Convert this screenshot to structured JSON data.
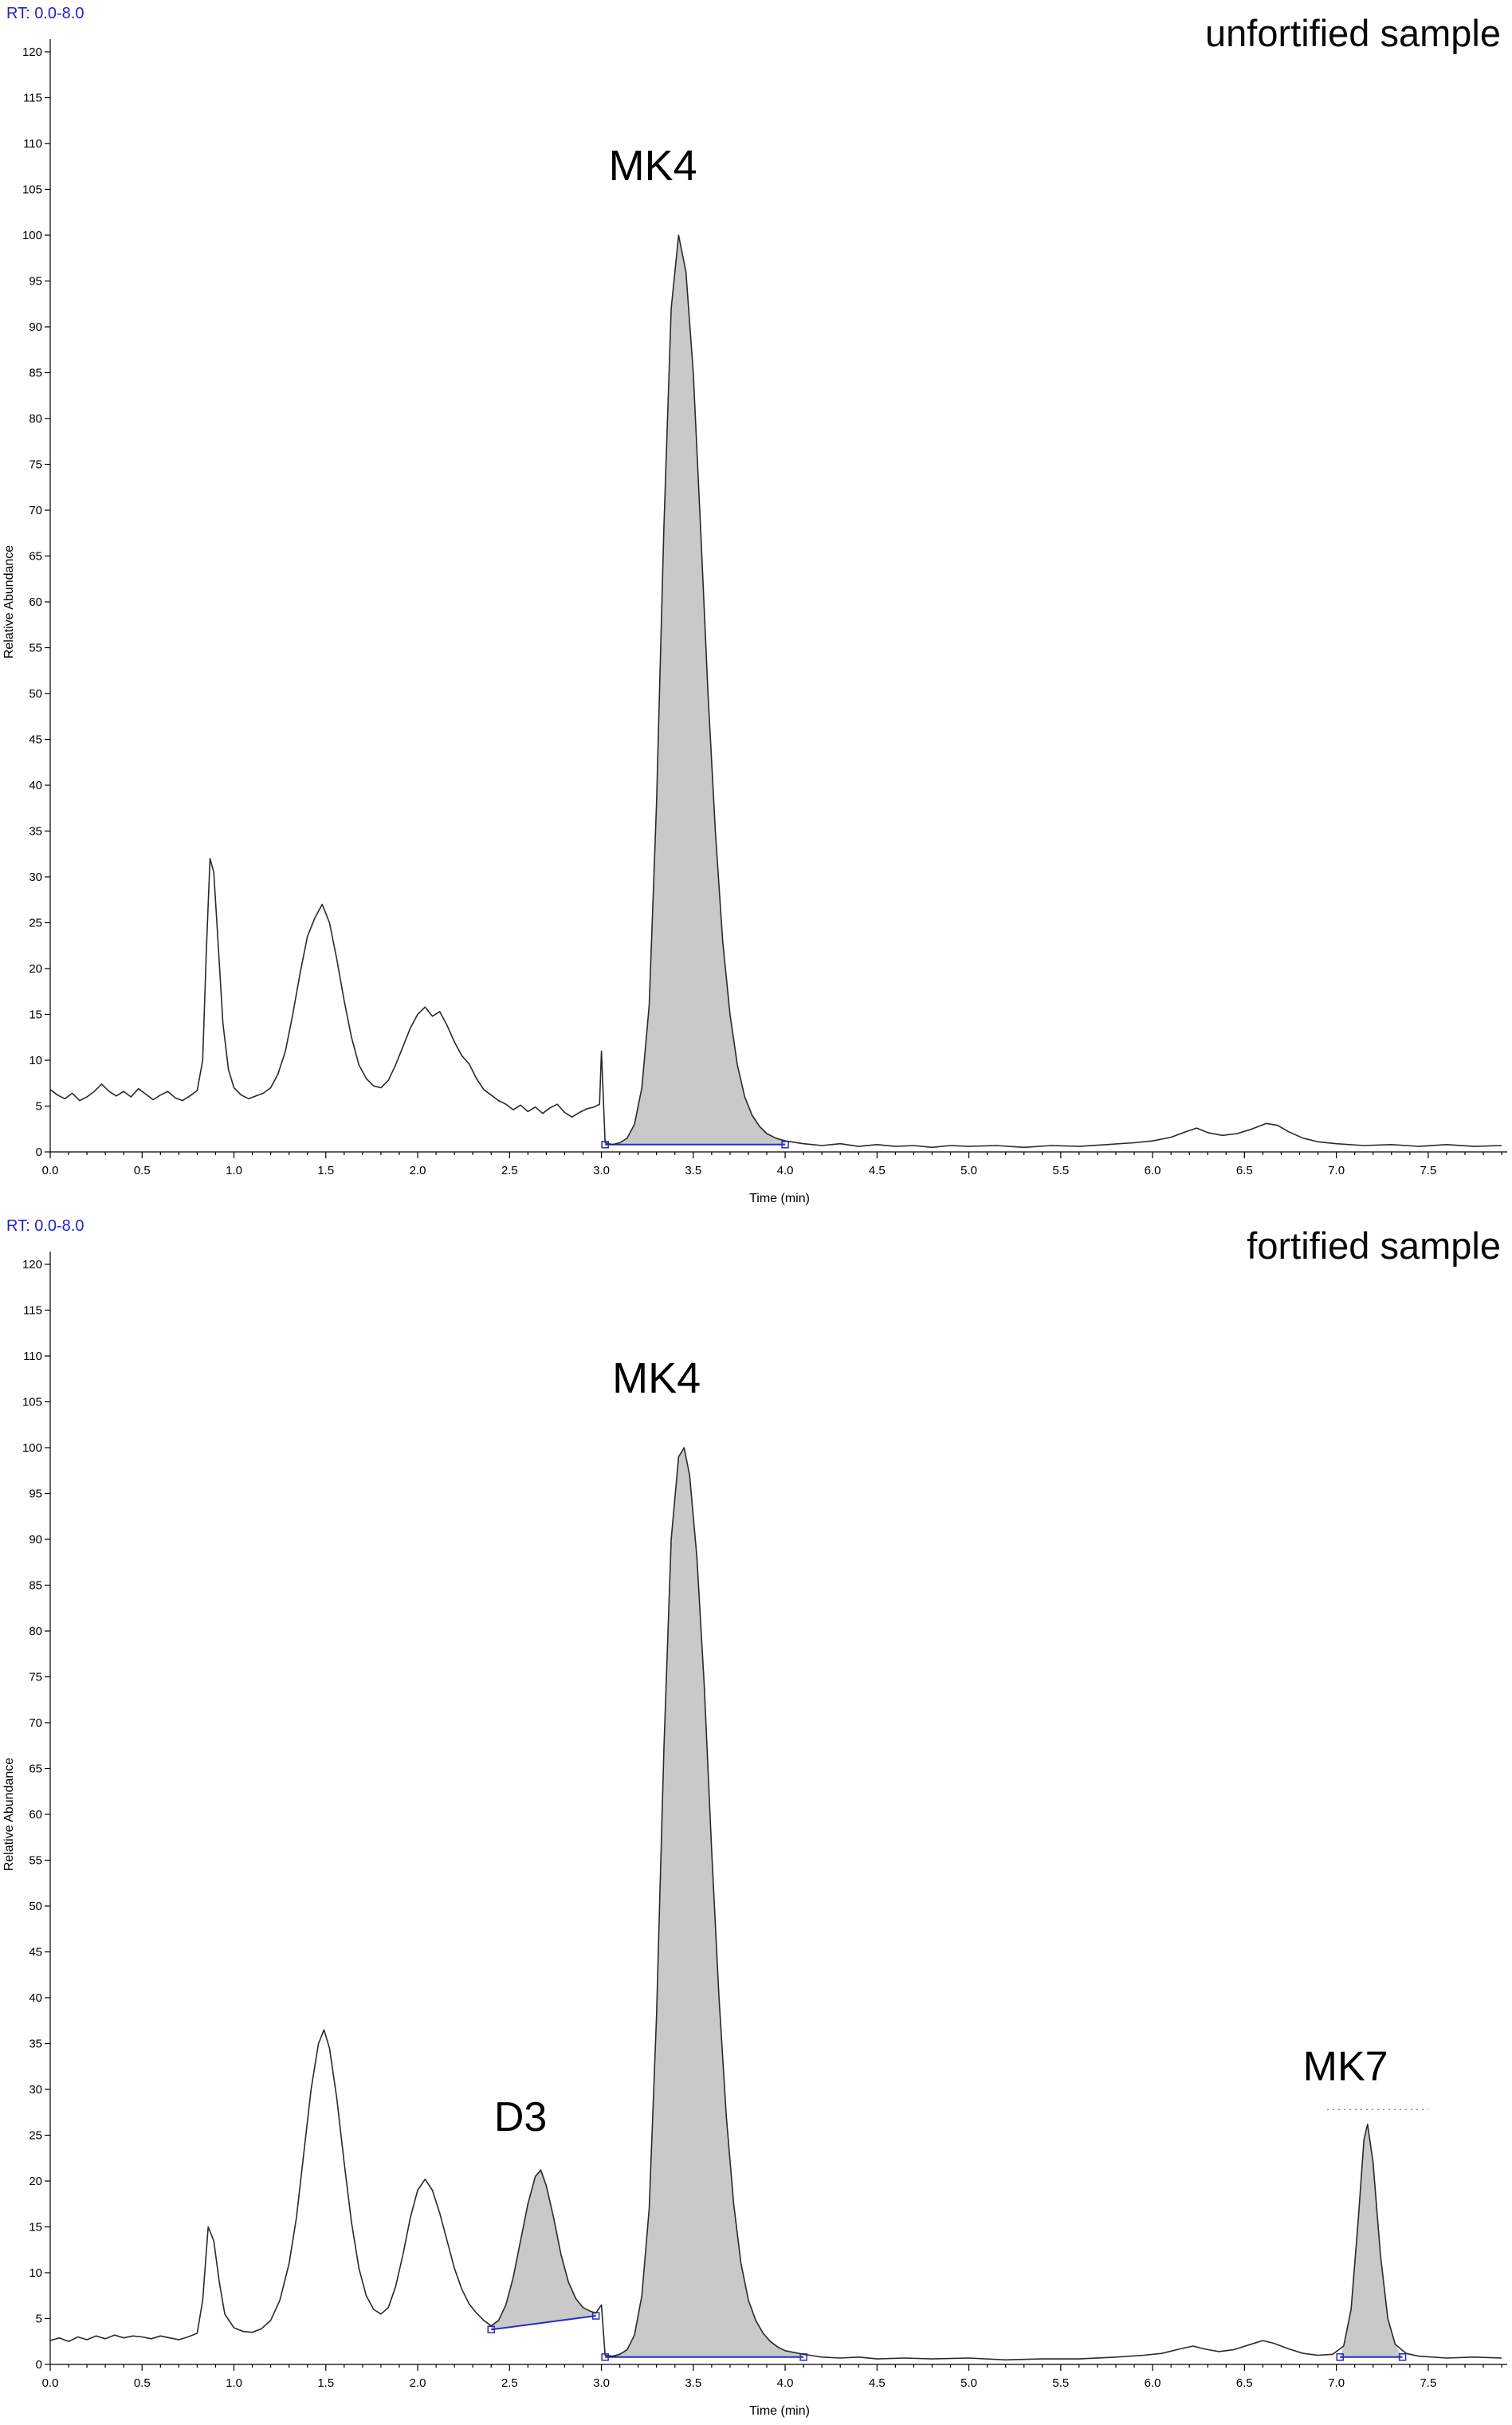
{
  "page": {
    "background": "#ffffff"
  },
  "chart_data": [
    {
      "type": "line",
      "rt_label": "RT: 0.0-8.0",
      "title": "unfortified sample",
      "xlabel": "Time (min)",
      "ylabel": "Relative Abundance",
      "xlim": [
        0,
        7.93
      ],
      "ylim": [
        0,
        120
      ],
      "xtick_step": 0.5,
      "xtick_minor": 0.1,
      "xtick_label_max": 7.5,
      "ytick_step": 5,
      "grid": false,
      "legend": false,
      "line_color": "#2a2a2a",
      "fill_color": "#c9c9c9",
      "integration_color": "#2b2bc4",
      "trace": [
        [
          0,
          6.8
        ],
        [
          0.04,
          6.2
        ],
        [
          0.08,
          5.8
        ],
        [
          0.12,
          6.4
        ],
        [
          0.16,
          5.6
        ],
        [
          0.2,
          6
        ],
        [
          0.24,
          6.6
        ],
        [
          0.28,
          7.4
        ],
        [
          0.32,
          6.6
        ],
        [
          0.36,
          6.1
        ],
        [
          0.4,
          6.6
        ],
        [
          0.44,
          6
        ],
        [
          0.48,
          6.9
        ],
        [
          0.52,
          6.3
        ],
        [
          0.56,
          5.7
        ],
        [
          0.6,
          6.2
        ],
        [
          0.64,
          6.6
        ],
        [
          0.68,
          5.9
        ],
        [
          0.72,
          5.6
        ],
        [
          0.76,
          6.1
        ],
        [
          0.8,
          6.7
        ],
        [
          0.83,
          10
        ],
        [
          0.85,
          22
        ],
        [
          0.87,
          32
        ],
        [
          0.89,
          30.5
        ],
        [
          0.91,
          24
        ],
        [
          0.94,
          14
        ],
        [
          0.97,
          9
        ],
        [
          1,
          7
        ],
        [
          1.04,
          6.2
        ],
        [
          1.08,
          5.8
        ],
        [
          1.12,
          6.1
        ],
        [
          1.16,
          6.4
        ],
        [
          1.2,
          7
        ],
        [
          1.24,
          8.5
        ],
        [
          1.28,
          11
        ],
        [
          1.32,
          15
        ],
        [
          1.36,
          19.5
        ],
        [
          1.4,
          23.5
        ],
        [
          1.44,
          25.5
        ],
        [
          1.48,
          27
        ],
        [
          1.52,
          25
        ],
        [
          1.56,
          21
        ],
        [
          1.6,
          16.5
        ],
        [
          1.64,
          12.5
        ],
        [
          1.68,
          9.5
        ],
        [
          1.72,
          8
        ],
        [
          1.76,
          7.2
        ],
        [
          1.8,
          7
        ],
        [
          1.84,
          7.8
        ],
        [
          1.88,
          9.5
        ],
        [
          1.92,
          11.5
        ],
        [
          1.96,
          13.5
        ],
        [
          2,
          15
        ],
        [
          2.04,
          15.8
        ],
        [
          2.08,
          14.8
        ],
        [
          2.12,
          15.3
        ],
        [
          2.16,
          13.8
        ],
        [
          2.2,
          12
        ],
        [
          2.24,
          10.5
        ],
        [
          2.28,
          9.6
        ],
        [
          2.32,
          8
        ],
        [
          2.36,
          6.8
        ],
        [
          2.4,
          6.2
        ],
        [
          2.44,
          5.6
        ],
        [
          2.48,
          5.2
        ],
        [
          2.52,
          4.6
        ],
        [
          2.56,
          5.1
        ],
        [
          2.6,
          4.4
        ],
        [
          2.64,
          4.9
        ],
        [
          2.68,
          4.2
        ],
        [
          2.72,
          4.8
        ],
        [
          2.76,
          5.2
        ],
        [
          2.8,
          4.3
        ],
        [
          2.84,
          3.8
        ],
        [
          2.88,
          4.3
        ],
        [
          2.92,
          4.7
        ],
        [
          2.96,
          4.9
        ],
        [
          2.99,
          5.2
        ],
        [
          3,
          11
        ],
        [
          3.02,
          1
        ],
        [
          3.06,
          0.8
        ],
        [
          3.1,
          1
        ],
        [
          3.14,
          1.5
        ],
        [
          3.18,
          3
        ],
        [
          3.22,
          7
        ],
        [
          3.26,
          16
        ],
        [
          3.3,
          38
        ],
        [
          3.34,
          68
        ],
        [
          3.38,
          92
        ],
        [
          3.42,
          100
        ],
        [
          3.46,
          96
        ],
        [
          3.5,
          85
        ],
        [
          3.54,
          68
        ],
        [
          3.58,
          50
        ],
        [
          3.62,
          35
        ],
        [
          3.66,
          23
        ],
        [
          3.7,
          15
        ],
        [
          3.74,
          9.5
        ],
        [
          3.78,
          6
        ],
        [
          3.82,
          4
        ],
        [
          3.86,
          2.8
        ],
        [
          3.9,
          2
        ],
        [
          3.95,
          1.5
        ],
        [
          4,
          1.2
        ],
        [
          4.1,
          0.9
        ],
        [
          4.2,
          0.7
        ],
        [
          4.3,
          0.9
        ],
        [
          4.4,
          0.6
        ],
        [
          4.5,
          0.8
        ],
        [
          4.6,
          0.6
        ],
        [
          4.7,
          0.7
        ],
        [
          4.8,
          0.5
        ],
        [
          4.9,
          0.7
        ],
        [
          5,
          0.6
        ],
        [
          5.15,
          0.7
        ],
        [
          5.3,
          0.5
        ],
        [
          5.45,
          0.7
        ],
        [
          5.6,
          0.6
        ],
        [
          5.75,
          0.8
        ],
        [
          5.9,
          1
        ],
        [
          6,
          1.2
        ],
        [
          6.1,
          1.6
        ],
        [
          6.18,
          2.2
        ],
        [
          6.24,
          2.6
        ],
        [
          6.3,
          2.1
        ],
        [
          6.38,
          1.8
        ],
        [
          6.46,
          2
        ],
        [
          6.54,
          2.5
        ],
        [
          6.62,
          3.1
        ],
        [
          6.68,
          2.9
        ],
        [
          6.74,
          2.2
        ],
        [
          6.82,
          1.5
        ],
        [
          6.9,
          1.1
        ],
        [
          7,
          0.9
        ],
        [
          7.15,
          0.7
        ],
        [
          7.3,
          0.8
        ],
        [
          7.45,
          0.6
        ],
        [
          7.6,
          0.8
        ],
        [
          7.75,
          0.6
        ],
        [
          7.9,
          0.7
        ]
      ],
      "shaded_peaks": [
        {
          "name": "MK4",
          "from": 3.02,
          "to": 4.0,
          "base_from": 0.8,
          "base_to": 0.8,
          "rt": 3.42,
          "height": 100
        }
      ],
      "integration_lines": [
        {
          "from": [
            3.02,
            0.8
          ],
          "to": [
            4.0,
            0.8
          ]
        }
      ],
      "dotted_guides": [],
      "annotations": [
        {
          "text": "MK4",
          "t": 3.28,
          "v": 106,
          "size": 54,
          "anchor": "middle"
        }
      ]
    },
    {
      "type": "line",
      "rt_label": "RT: 0.0-8.0",
      "title": "fortified sample",
      "xlabel": "Time (min)",
      "ylabel": "Relative Abundance",
      "xlim": [
        0,
        7.93
      ],
      "ylim": [
        0,
        120
      ],
      "xtick_step": 0.5,
      "xtick_minor": 0.1,
      "xtick_label_max": 7.5,
      "ytick_step": 5,
      "grid": false,
      "legend": false,
      "line_color": "#2a2a2a",
      "fill_color": "#c9c9c9",
      "integration_color": "#2b2bc4",
      "trace": [
        [
          0,
          2.6
        ],
        [
          0.05,
          2.9
        ],
        [
          0.1,
          2.5
        ],
        [
          0.15,
          3
        ],
        [
          0.2,
          2.7
        ],
        [
          0.25,
          3.1
        ],
        [
          0.3,
          2.8
        ],
        [
          0.35,
          3.2
        ],
        [
          0.4,
          2.9
        ],
        [
          0.45,
          3.1
        ],
        [
          0.5,
          3
        ],
        [
          0.55,
          2.8
        ],
        [
          0.6,
          3.1
        ],
        [
          0.65,
          2.9
        ],
        [
          0.7,
          2.7
        ],
        [
          0.75,
          3
        ],
        [
          0.8,
          3.4
        ],
        [
          0.83,
          7
        ],
        [
          0.86,
          15
        ],
        [
          0.89,
          13.5
        ],
        [
          0.92,
          9
        ],
        [
          0.95,
          5.5
        ],
        [
          1,
          4
        ],
        [
          1.05,
          3.6
        ],
        [
          1.1,
          3.5
        ],
        [
          1.15,
          3.9
        ],
        [
          1.2,
          4.8
        ],
        [
          1.25,
          7
        ],
        [
          1.3,
          11
        ],
        [
          1.34,
          16
        ],
        [
          1.38,
          23
        ],
        [
          1.42,
          30
        ],
        [
          1.46,
          35
        ],
        [
          1.49,
          36.5
        ],
        [
          1.52,
          34.5
        ],
        [
          1.56,
          29
        ],
        [
          1.6,
          22
        ],
        [
          1.64,
          15.5
        ],
        [
          1.68,
          10.5
        ],
        [
          1.72,
          7.5
        ],
        [
          1.76,
          6
        ],
        [
          1.8,
          5.5
        ],
        [
          1.84,
          6.2
        ],
        [
          1.88,
          8.5
        ],
        [
          1.92,
          12
        ],
        [
          1.96,
          16
        ],
        [
          2,
          19
        ],
        [
          2.04,
          20.2
        ],
        [
          2.08,
          19
        ],
        [
          2.12,
          16.5
        ],
        [
          2.16,
          13.5
        ],
        [
          2.2,
          10.5
        ],
        [
          2.24,
          8.2
        ],
        [
          2.28,
          6.6
        ],
        [
          2.32,
          5.6
        ],
        [
          2.36,
          4.8
        ],
        [
          2.4,
          4.2
        ],
        [
          2.44,
          4.8
        ],
        [
          2.48,
          6.5
        ],
        [
          2.52,
          9.5
        ],
        [
          2.56,
          13.5
        ],
        [
          2.6,
          17.5
        ],
        [
          2.64,
          20.5
        ],
        [
          2.67,
          21.2
        ],
        [
          2.7,
          19.5
        ],
        [
          2.74,
          16
        ],
        [
          2.78,
          12
        ],
        [
          2.82,
          9
        ],
        [
          2.86,
          7.2
        ],
        [
          2.9,
          6.2
        ],
        [
          2.94,
          5.8
        ],
        [
          2.97,
          5.6
        ],
        [
          3,
          6.5
        ],
        [
          3.02,
          1
        ],
        [
          3.06,
          0.9
        ],
        [
          3.1,
          1.1
        ],
        [
          3.14,
          1.6
        ],
        [
          3.18,
          3.2
        ],
        [
          3.22,
          7.5
        ],
        [
          3.26,
          17
        ],
        [
          3.3,
          38
        ],
        [
          3.34,
          67
        ],
        [
          3.38,
          90
        ],
        [
          3.42,
          99
        ],
        [
          3.45,
          100
        ],
        [
          3.48,
          97
        ],
        [
          3.52,
          88
        ],
        [
          3.56,
          74
        ],
        [
          3.6,
          56
        ],
        [
          3.64,
          40
        ],
        [
          3.68,
          27
        ],
        [
          3.72,
          17.5
        ],
        [
          3.76,
          11
        ],
        [
          3.8,
          7
        ],
        [
          3.84,
          4.8
        ],
        [
          3.88,
          3.4
        ],
        [
          3.92,
          2.5
        ],
        [
          3.96,
          1.9
        ],
        [
          4,
          1.5
        ],
        [
          4.1,
          1.1
        ],
        [
          4.2,
          0.8
        ],
        [
          4.3,
          0.7
        ],
        [
          4.4,
          0.8
        ],
        [
          4.5,
          0.6
        ],
        [
          4.65,
          0.7
        ],
        [
          4.8,
          0.6
        ],
        [
          5,
          0.7
        ],
        [
          5.2,
          0.5
        ],
        [
          5.4,
          0.6
        ],
        [
          5.6,
          0.6
        ],
        [
          5.8,
          0.8
        ],
        [
          5.95,
          1
        ],
        [
          6.05,
          1.2
        ],
        [
          6.15,
          1.7
        ],
        [
          6.22,
          2
        ],
        [
          6.28,
          1.7
        ],
        [
          6.36,
          1.4
        ],
        [
          6.44,
          1.6
        ],
        [
          6.52,
          2.1
        ],
        [
          6.6,
          2.6
        ],
        [
          6.66,
          2.3
        ],
        [
          6.74,
          1.7
        ],
        [
          6.82,
          1.2
        ],
        [
          6.9,
          1
        ],
        [
          6.98,
          1.1
        ],
        [
          7.04,
          2
        ],
        [
          7.08,
          6
        ],
        [
          7.12,
          16
        ],
        [
          7.15,
          24.5
        ],
        [
          7.17,
          26.2
        ],
        [
          7.2,
          22
        ],
        [
          7.24,
          12
        ],
        [
          7.28,
          5
        ],
        [
          7.32,
          2.2
        ],
        [
          7.38,
          1.2
        ],
        [
          7.45,
          0.9
        ],
        [
          7.6,
          0.7
        ],
        [
          7.75,
          0.8
        ],
        [
          7.9,
          0.7
        ]
      ],
      "shaded_peaks": [
        {
          "name": "D3",
          "from": 2.4,
          "to": 2.97,
          "base_from": 3.8,
          "base_to": 5.3,
          "rt": 2.67,
          "height": 21
        },
        {
          "name": "MK4",
          "from": 3.02,
          "to": 4.1,
          "base_from": 0.8,
          "base_to": 0.8,
          "rt": 3.45,
          "height": 100
        },
        {
          "name": "MK7",
          "from": 7.02,
          "to": 7.36,
          "base_from": 0.8,
          "base_to": 0.8,
          "rt": 7.17,
          "height": 26
        }
      ],
      "integration_lines": [
        {
          "from": [
            2.4,
            3.8
          ],
          "to": [
            2.97,
            5.3
          ]
        },
        {
          "from": [
            3.02,
            0.8
          ],
          "to": [
            4.1,
            0.8
          ]
        },
        {
          "from": [
            7.02,
            0.8
          ],
          "to": [
            7.36,
            0.8
          ]
        }
      ],
      "dotted_guides": [
        {
          "from": [
            6.95,
            27.8
          ],
          "to": [
            7.5,
            27.8
          ]
        }
      ],
      "annotations": [
        {
          "text": "D3",
          "t": 2.56,
          "v": 25.5,
          "size": 52,
          "anchor": "middle"
        },
        {
          "text": "MK4",
          "t": 3.3,
          "v": 106,
          "size": 54,
          "anchor": "middle"
        },
        {
          "text": "MK7",
          "t": 7.05,
          "v": 31,
          "size": 52,
          "anchor": "middle"
        }
      ]
    }
  ]
}
